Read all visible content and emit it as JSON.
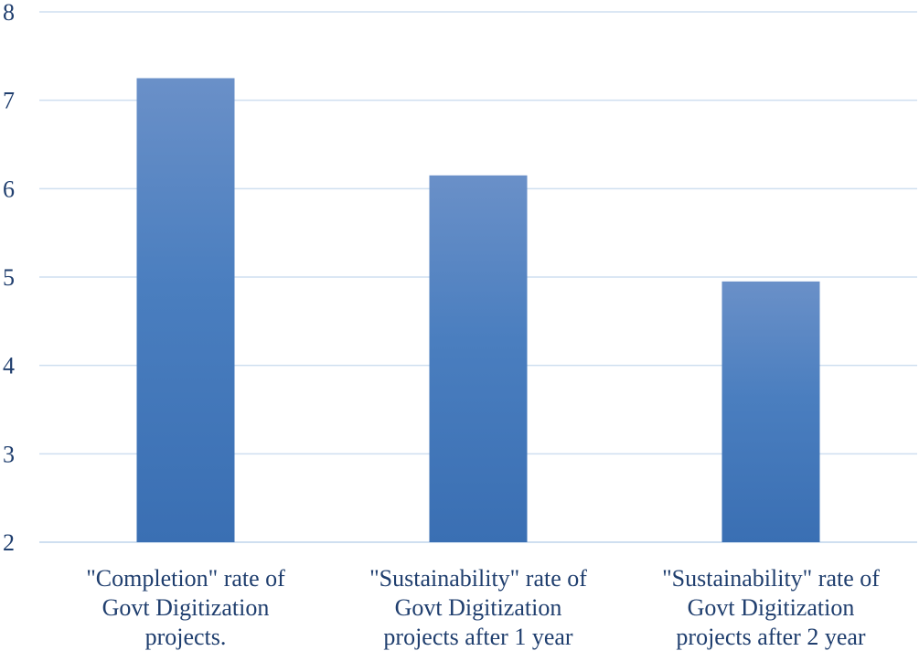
{
  "chart_data": {
    "type": "bar",
    "categories": [
      [
        "\"Completion\" rate of",
        "Govt Digitization",
        "projects."
      ],
      [
        "\"Sustainability\" rate of",
        "Govt Digitization",
        "projects after 1 year"
      ],
      [
        "\"Sustainability\" rate of",
        "Govt Digitization",
        "projects after 2 year"
      ]
    ],
    "values": [
      7.25,
      6.15,
      4.95
    ],
    "ylim": [
      2,
      8
    ],
    "yticks": [
      "2",
      "3",
      "4",
      "5",
      "6",
      "7",
      "8"
    ],
    "title": "",
    "xlabel": "",
    "ylabel": "",
    "grid": true,
    "bar_color": "#4a7ebf",
    "bar_color_top": "#6a90c8",
    "bar_color_bottom": "#3a6fb3"
  }
}
